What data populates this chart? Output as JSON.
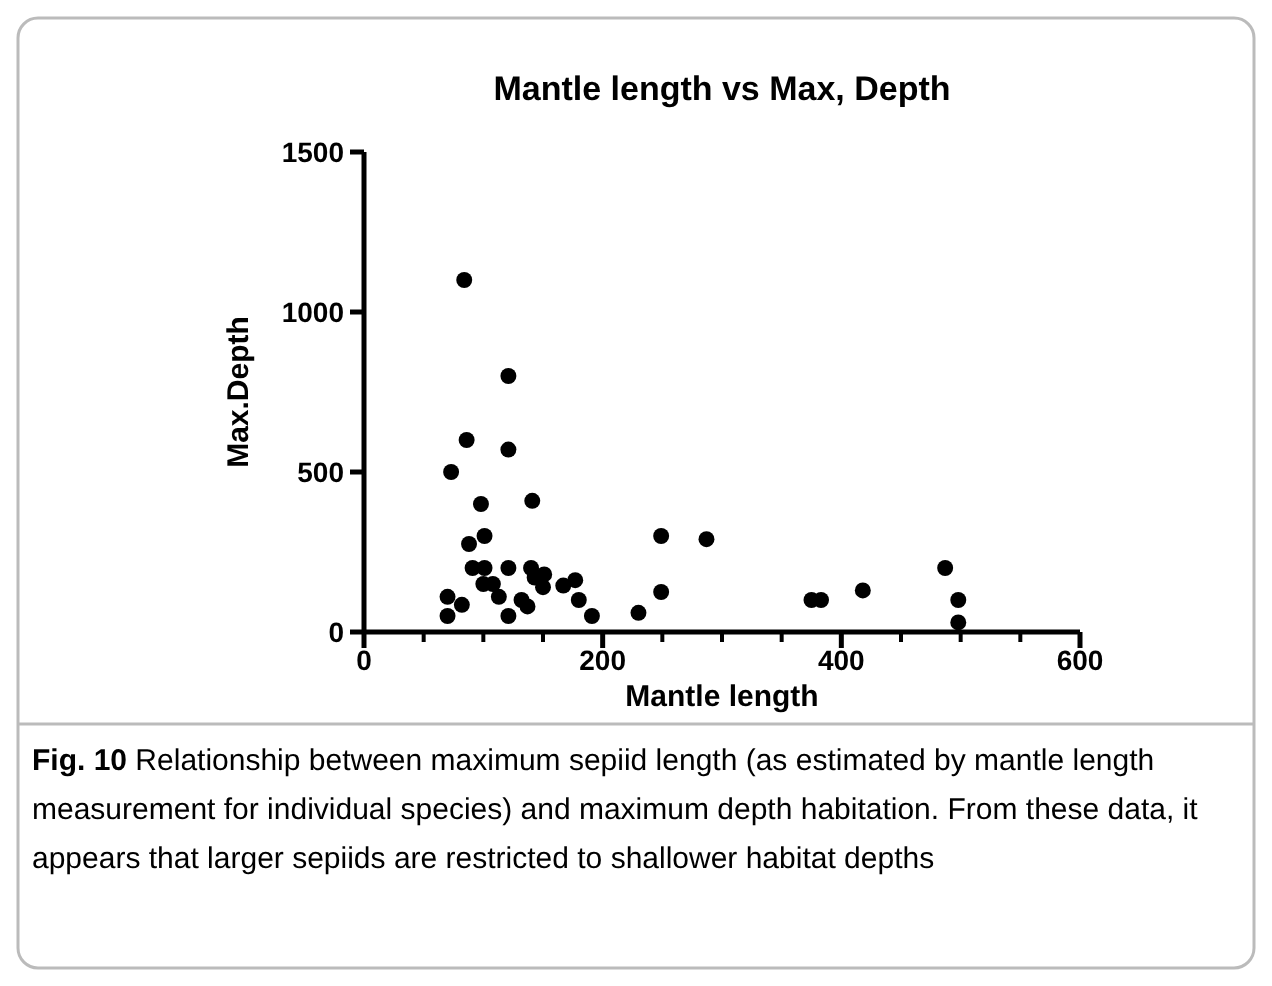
{
  "chart_data": {
    "type": "scatter",
    "title": "Mantle length vs Max, Depth",
    "xlabel": "Mantle length",
    "ylabel": "Max.Depth",
    "xlim": [
      0,
      600
    ],
    "ylim": [
      0,
      1500
    ],
    "xticks": [
      0,
      {
        "value": 50,
        "label": null
      },
      {
        "value": 100,
        "label": null
      },
      {
        "value": 150,
        "label": null
      },
      200,
      {
        "value": 250,
        "label": null
      },
      {
        "value": 300,
        "label": null
      },
      {
        "value": 350,
        "label": null
      },
      400,
      {
        "value": 450,
        "label": null
      },
      {
        "value": 500,
        "label": null
      },
      {
        "value": 550,
        "label": null
      },
      600
    ],
    "yticks": [
      0,
      500,
      1000,
      1500
    ],
    "grid": false,
    "marker": "circle",
    "series": [
      {
        "color": "#000000",
        "x": [
          84,
          121,
          86,
          121,
          73,
          98,
          141,
          88,
          101,
          91,
          101,
          121,
          140,
          151,
          108,
          100,
          113,
          70,
          82,
          70,
          121,
          132,
          137,
          150,
          143,
          167,
          177,
          180,
          191,
          230,
          249,
          249,
          287,
          375,
          383,
          418,
          487,
          498,
          498
        ],
        "values": [
          1100,
          800,
          600,
          570,
          500,
          400,
          410,
          275,
          300,
          200,
          200,
          200,
          200,
          180,
          150,
          150,
          110,
          110,
          85,
          50,
          50,
          100,
          80,
          140,
          170,
          145,
          162,
          100,
          50,
          60,
          300,
          125,
          290,
          100,
          100,
          130,
          200,
          100,
          30
        ]
      }
    ],
    "annotations": [
      "Fig. 10 Relationship between maximum sepiid length (as estimated by mantle length measurement for individual species) and maximum depth habitation. From these data, it appears that larger sepiids are restricted to shallower habitat depths"
    ]
  }
}
